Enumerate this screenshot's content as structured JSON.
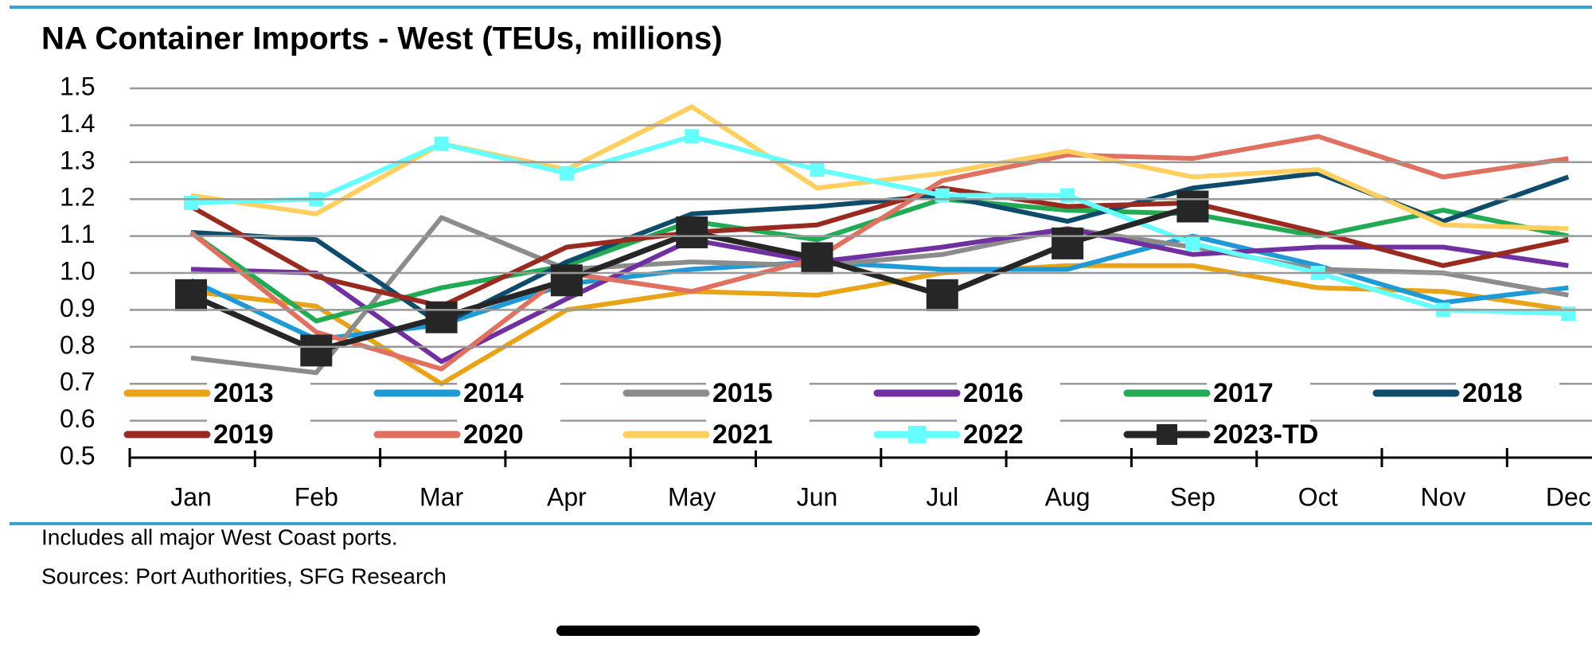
{
  "chart_data": {
    "type": "line",
    "title": "NA Container Imports - West (TEUs, millions)",
    "categories": [
      "Jan",
      "Feb",
      "Mar",
      "Apr",
      "May",
      "Jun",
      "Jul",
      "Aug",
      "Sep",
      "Oct",
      "Nov",
      "Dec"
    ],
    "ylim": [
      0.5,
      1.5
    ],
    "yticks": [
      0.5,
      0.6,
      0.7,
      0.8,
      0.9,
      {
        "value": 1,
        "label": "1.0"
      },
      1.1,
      1.2,
      1.3,
      1.4,
      1.5
    ],
    "grid": true,
    "series": [
      {
        "name": "2013",
        "color": "#e8a317",
        "values": [
          0.95,
          0.91,
          0.7,
          0.9,
          0.95,
          0.94,
          1.0,
          1.02,
          1.02,
          0.96,
          0.95,
          0.9
        ]
      },
      {
        "name": "2014",
        "color": "#1f9ad6",
        "values": [
          0.98,
          0.82,
          0.86,
          0.97,
          1.01,
          1.03,
          1.01,
          1.01,
          1.1,
          1.02,
          0.92,
          0.96
        ]
      },
      {
        "name": "2015",
        "color": "#8c8c8c",
        "values": [
          0.77,
          0.73,
          1.15,
          1.01,
          1.03,
          1.02,
          1.05,
          1.12,
          1.07,
          1.01,
          1.0,
          0.94
        ]
      },
      {
        "name": "2016",
        "color": "#7030a0",
        "values": [
          1.01,
          1.0,
          0.76,
          0.93,
          1.09,
          1.03,
          1.07,
          1.12,
          1.05,
          1.07,
          1.07,
          1.02
        ]
      },
      {
        "name": "2017",
        "color": "#22aa55",
        "values": [
          1.11,
          0.87,
          0.96,
          1.02,
          1.14,
          1.09,
          1.2,
          1.17,
          1.16,
          1.1,
          1.17,
          1.1
        ]
      },
      {
        "name": "2018",
        "color": "#0f4c6b",
        "values": [
          1.11,
          1.09,
          0.86,
          1.03,
          1.16,
          1.18,
          1.21,
          1.14,
          1.23,
          1.27,
          1.14,
          1.26
        ]
      },
      {
        "name": "2019",
        "color": "#992a20",
        "values": [
          1.18,
          0.99,
          0.91,
          1.07,
          1.11,
          1.13,
          1.23,
          1.18,
          1.19,
          1.11,
          1.02,
          1.09
        ]
      },
      {
        "name": "2020",
        "color": "#e07060",
        "values": [
          1.11,
          0.84,
          0.74,
          1.0,
          0.95,
          1.04,
          1.25,
          1.32,
          1.31,
          1.37,
          1.26,
          1.31
        ]
      },
      {
        "name": "2021",
        "color": "#ffd060",
        "values": [
          1.21,
          1.16,
          1.35,
          1.28,
          1.45,
          1.23,
          1.27,
          1.33,
          1.26,
          1.28,
          1.13,
          1.12
        ]
      },
      {
        "name": "2022",
        "color": "#66ffff",
        "marker": "square",
        "values": [
          1.19,
          1.2,
          1.35,
          1.27,
          1.37,
          1.28,
          1.21,
          1.21,
          1.08,
          1.0,
          0.9,
          0.89
        ]
      },
      {
        "name": "2023-TD",
        "color": "#262626",
        "marker": "square",
        "values": [
          0.94,
          0.79,
          0.88,
          0.98,
          1.11,
          1.04,
          0.94,
          1.08,
          1.18,
          null,
          null,
          null
        ]
      }
    ],
    "notes": [
      "Includes all major West Coast ports.",
      "Sources: Port Authorities, SFG Research"
    ]
  }
}
